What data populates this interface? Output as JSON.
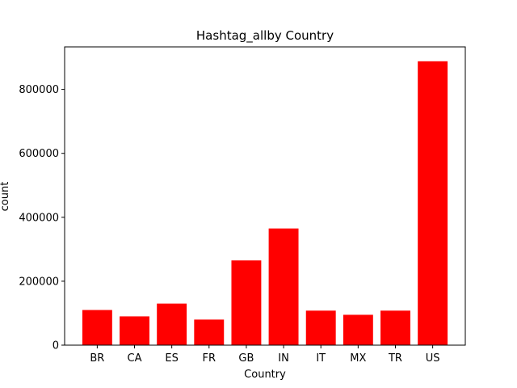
{
  "chart_data": {
    "type": "bar",
    "title": "Hashtag_allby Country",
    "xlabel": "Country",
    "ylabel": "count",
    "categories": [
      "BR",
      "CA",
      "ES",
      "FR",
      "GB",
      "IN",
      "IT",
      "MX",
      "TR",
      "US"
    ],
    "values": [
      110000,
      90000,
      130000,
      80000,
      265000,
      365000,
      108000,
      95000,
      108000,
      888000
    ],
    "ylim": [
      0,
      933000
    ],
    "yticks": [
      0,
      200000,
      400000,
      600000,
      800000
    ],
    "ytick_labels": [
      "0",
      "200000",
      "400000",
      "600000",
      "800000"
    ],
    "grid": false,
    "bar_color": "#ff0000"
  }
}
